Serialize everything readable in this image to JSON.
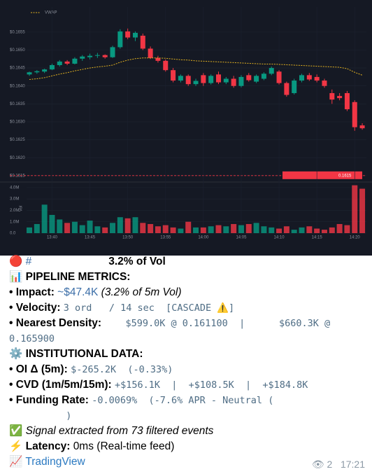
{
  "chart_data": {
    "type": "candlestick",
    "legend": "VWAP",
    "volume_axis_label": "Vol",
    "categories": [
      null,
      null,
      null,
      "13:40",
      null,
      null,
      null,
      null,
      "13:45",
      null,
      null,
      null,
      null,
      "13:50",
      null,
      null,
      null,
      null,
      "13:55",
      null,
      null,
      null,
      null,
      "14:00",
      null,
      null,
      null,
      null,
      "14:05",
      null,
      null,
      null,
      null,
      "14:10",
      null,
      null,
      null,
      null,
      "14:15",
      null,
      null,
      null,
      null,
      "14:20",
      null
    ],
    "open": [
      0.16432,
      0.16438,
      0.1644,
      0.16446,
      0.16458,
      0.16468,
      0.16462,
      0.16476,
      0.1648,
      0.16484,
      0.16486,
      0.1648,
      0.16508,
      0.16552,
      0.16535,
      0.1654,
      0.16504,
      0.16478,
      0.1647,
      0.16444,
      0.16415,
      0.16428,
      0.16405,
      0.1643,
      0.16408,
      0.16432,
      0.1641,
      0.1642,
      0.164,
      0.1643,
      0.16412,
      0.1642,
      0.16434,
      0.1644,
      0.16408,
      0.1638,
      0.16415,
      0.1643,
      0.16425,
      0.16415,
      0.1638,
      0.16372,
      0.1638,
      0.16355,
      0.1629
    ],
    "high": [
      0.1644,
      0.16444,
      0.16448,
      0.16462,
      0.16472,
      0.16472,
      0.1648,
      0.16486,
      0.1649,
      0.16492,
      0.16488,
      0.16512,
      0.16558,
      0.1656,
      0.16552,
      0.16546,
      0.1651,
      0.16484,
      0.16474,
      0.1645,
      0.16432,
      0.16432,
      0.1642,
      0.16436,
      0.16432,
      0.1644,
      0.16425,
      0.16428,
      0.1643,
      0.16436,
      0.16432,
      0.16438,
      0.16454,
      0.16444,
      0.16412,
      0.1642,
      0.16434,
      0.16436,
      0.16432,
      0.1642,
      0.1639,
      0.1638,
      0.16386,
      0.1636,
      0.16296
    ],
    "low": [
      0.16428,
      0.16434,
      0.16436,
      0.16444,
      0.16454,
      0.16458,
      0.1646,
      0.1647,
      0.16474,
      0.16478,
      0.16476,
      0.16478,
      0.16504,
      0.1653,
      0.16525,
      0.165,
      0.16475,
      0.16465,
      0.1644,
      0.1641,
      0.1641,
      0.164,
      0.164,
      0.164,
      0.16404,
      0.16405,
      0.16405,
      0.16395,
      0.16396,
      0.16412,
      0.16408,
      0.16416,
      0.1643,
      0.16404,
      0.1637,
      0.16376,
      0.1641,
      0.16414,
      0.1641,
      0.16395,
      0.1635,
      0.1636,
      0.1633,
      0.16275,
      0.16278
    ],
    "close": [
      0.16438,
      0.16441,
      0.16446,
      0.16458,
      0.16468,
      0.16462,
      0.16476,
      0.16482,
      0.16484,
      0.16486,
      0.1648,
      0.16508,
      0.16552,
      0.16535,
      0.16548,
      0.16504,
      0.16478,
      0.1647,
      0.16444,
      0.16415,
      0.16428,
      0.16405,
      0.16414,
      0.16408,
      0.16428,
      0.1641,
      0.1642,
      0.164,
      0.16425,
      0.16416,
      0.16428,
      0.16434,
      0.1645,
      0.16408,
      0.16375,
      0.16415,
      0.1643,
      0.16418,
      0.16415,
      0.164,
      0.16362,
      0.16366,
      0.16335,
      0.16285,
      0.16282
    ],
    "vwap": {
      "name": "VWAP",
      "color": "#e0b020",
      "values": [
        0.16418,
        0.1642,
        0.16423,
        0.16428,
        0.16433,
        0.16437,
        0.16442,
        0.16446,
        0.1645,
        0.16453,
        0.16455,
        0.16458,
        0.16466,
        0.16472,
        0.16476,
        0.16478,
        0.16478,
        0.16478,
        0.16477,
        0.16475,
        0.16473,
        0.16472,
        0.1647,
        0.16469,
        0.16468,
        0.16467,
        0.16466,
        0.16465,
        0.16464,
        0.16463,
        0.16462,
        0.16461,
        0.16461,
        0.1646,
        0.16459,
        0.16458,
        0.16457,
        0.16456,
        0.16455,
        0.16454,
        0.16453,
        0.16452,
        0.16448,
        0.16438,
        0.1643
      ]
    },
    "volume": [
      0.5,
      0.8,
      2.5,
      1.6,
      1.2,
      0.9,
      1.0,
      0.7,
      1.1,
      0.6,
      0.5,
      0.9,
      1.4,
      1.3,
      1.4,
      0.9,
      0.8,
      0.6,
      0.7,
      0.5,
      0.4,
      1.0,
      0.5,
      0.5,
      0.6,
      0.7,
      0.6,
      0.8,
      0.7,
      0.8,
      0.9,
      0.6,
      0.5,
      0.4,
      0.6,
      0.3,
      0.5,
      0.6,
      0.4,
      0.3,
      0.5,
      0.8,
      0.7,
      4.2,
      3.9
    ],
    "up_color": "#089981",
    "down_color": "#f23645",
    "ylim": [
      0.16136,
      0.1662
    ],
    "yticks": [
      {
        "value": 0.1655,
        "label": "$0.1655"
      },
      {
        "value": 0.165,
        "label": "$0.1650"
      },
      {
        "value": 0.1645,
        "label": "$0.1645"
      },
      {
        "value": 0.164,
        "label": "$0.1640"
      },
      {
        "value": 0.1635,
        "label": "$0.1635"
      },
      {
        "value": 0.163,
        "label": "$0.1630"
      },
      {
        "value": 0.1625,
        "label": "$0.1625"
      },
      {
        "value": 0.162,
        "label": "$0.1620"
      },
      {
        "value": 0.1615,
        "label": "$0.1615"
      }
    ],
    "price_line": 0.1615,
    "volume_ylim": [
      0,
      4.3
    ],
    "volume_ticks": [
      {
        "value": 4,
        "label": "4.0M"
      },
      {
        "value": 3,
        "label": "3.0M"
      },
      {
        "value": 2,
        "label": "2.0M"
      },
      {
        "value": 1,
        "label": "1.0M"
      },
      {
        "value": 0,
        "label": "0.0"
      }
    ],
    "grid": true
  },
  "message": {
    "headline_icon": "🔴",
    "headline_tag": "#",
    "headline_share": "3.2% of Vol",
    "pipeline_title": "📊 PIPELINE METRICS:",
    "impact_label": "• Impact:",
    "impact_value": "~$47.4K",
    "impact_note": "(3.2% of 5m Vol)",
    "velocity_label": "• Velocity:",
    "velocity_value": "3 ord   / 14 sec  [CASCADE ⚠️]",
    "density_label": "• Nearest Density:",
    "density_value": "$599.0K @ 0.161100  |      $660.3K @ 0.165900",
    "institutional_title": "⚙️ INSTITUTIONAL DATA:",
    "oi_label": "• OI Δ (5m):",
    "oi_value": "$-265.2K  (-0.33%)",
    "cvd_label": "• CVD (1m/5m/15m):",
    "cvd_value": "+$156.1K  |  +$108.5K  |  +$184.8K",
    "funding_label": "• Funding Rate:",
    "funding_value": "-0.0069%  (-7.6% APR - Neutral (\n          )",
    "signal_icon": "✅",
    "signal_text": "Signal extracted from 73 filtered events",
    "latency_icon": "⚡",
    "latency_label": "Latency:",
    "latency_value": "0ms (Real-time feed)",
    "link_icon": "📈",
    "link_text": "TradingView",
    "views_icon": "👁",
    "views": "2",
    "time": "17:21"
  }
}
